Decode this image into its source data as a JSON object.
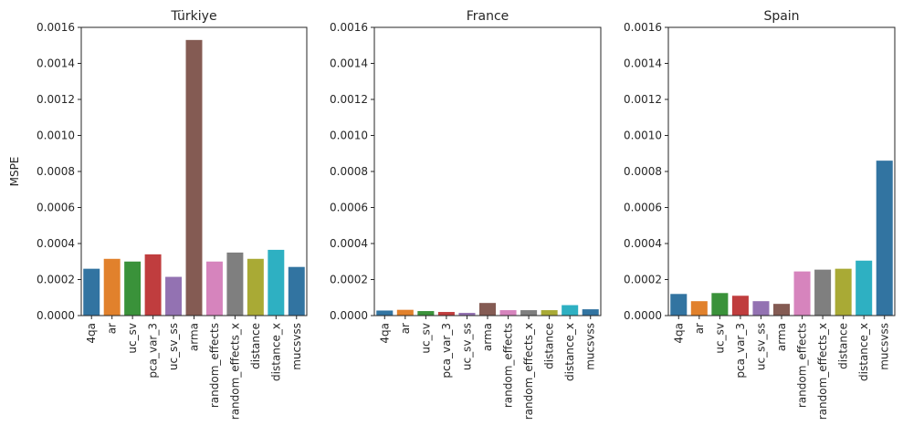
{
  "chart_data": [
    {
      "type": "bar",
      "title": "Türkiye",
      "xlabel": "",
      "ylabel": "MSPE",
      "ylim": [
        0,
        0.0016
      ],
      "yticks": [
        "0.0000",
        "0.0002",
        "0.0004",
        "0.0006",
        "0.0008",
        "0.0010",
        "0.0012",
        "0.0014",
        "0.0016"
      ],
      "categories": [
        "4qa",
        "ar",
        "uc_sv",
        "pca_var_3",
        "uc_sv_ss",
        "arma",
        "random_effects",
        "random_effects_x",
        "distance",
        "distance_x",
        "mucsvss"
      ],
      "values": [
        0.00026,
        0.000315,
        0.0003,
        0.00034,
        0.000215,
        0.00153,
        0.0003,
        0.00035,
        0.000315,
        0.000365,
        0.00027
      ]
    },
    {
      "type": "bar",
      "title": "France",
      "xlabel": "",
      "ylabel": "",
      "ylim": [
        0,
        0.0016
      ],
      "yticks": [
        "0.0000",
        "0.0002",
        "0.0004",
        "0.0006",
        "0.0008",
        "0.0010",
        "0.0012",
        "0.0014",
        "0.0016"
      ],
      "categories": [
        "4qa",
        "ar",
        "uc_sv",
        "pca_var_3",
        "uc_sv_ss",
        "arma",
        "random_effects",
        "random_effects_x",
        "distance",
        "distance_x",
        "mucsvss"
      ],
      "values": [
        2.8e-05,
        3.2e-05,
        2.5e-05,
        2e-05,
        1.5e-05,
        7e-05,
        3e-05,
        3e-05,
        3e-05,
        5.8e-05,
        3.5e-05
      ]
    },
    {
      "type": "bar",
      "title": "Spain",
      "xlabel": "",
      "ylabel": "",
      "ylim": [
        0,
        0.0016
      ],
      "yticks": [
        "0.0000",
        "0.0002",
        "0.0004",
        "0.0006",
        "0.0008",
        "0.0010",
        "0.0012",
        "0.0014",
        "0.0016"
      ],
      "categories": [
        "4qa",
        "ar",
        "uc_sv",
        "pca_var_3",
        "uc_sv_ss",
        "arma",
        "random_effects",
        "random_effects_x",
        "distance",
        "distance_x",
        "mucsvss"
      ],
      "values": [
        0.00012,
        8e-05,
        0.000125,
        0.00011,
        8e-05,
        6.5e-05,
        0.000245,
        0.000255,
        0.00026,
        0.000305,
        0.00086
      ]
    }
  ],
  "colors": [
    "#3274a1",
    "#e1812c",
    "#3a923a",
    "#c03d3e",
    "#9372b2",
    "#845b53",
    "#d684bd",
    "#7f7f7f",
    "#a9aa35",
    "#2eb0c2",
    "#3274a1"
  ]
}
